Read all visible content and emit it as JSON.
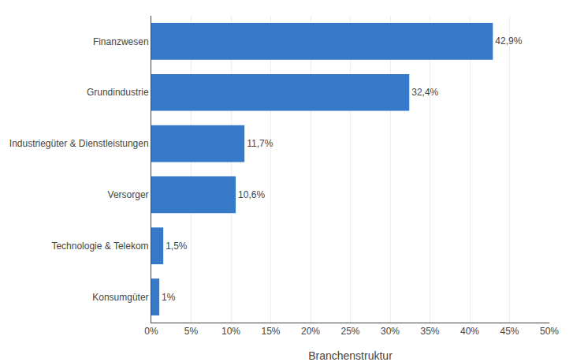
{
  "chart_data": {
    "type": "bar",
    "orientation": "horizontal",
    "xlabel": "Branchenstruktur",
    "categories": [
      "Konsumgüter",
      "Technologie & Telekom",
      "Versorger",
      "Industriegüter & Dienstleistungen",
      "Grundindustrie",
      "Finanzwesen"
    ],
    "values": [
      1.0,
      1.5,
      10.6,
      11.7,
      32.4,
      42.9
    ],
    "value_labels": [
      "1%",
      "1,5%",
      "10,6%",
      "11,7%",
      "32,4%",
      "42,9%"
    ],
    "color": "#3579c8",
    "xlim": [
      0,
      50
    ],
    "xticks": [
      {
        "value": 0,
        "label": "0%"
      },
      {
        "value": 5,
        "label": "5%"
      },
      {
        "value": 10,
        "label": "10%"
      },
      {
        "value": 15,
        "label": "15%"
      },
      {
        "value": 20,
        "label": "20%"
      },
      {
        "value": 25,
        "label": "25%"
      },
      {
        "value": 30,
        "label": "30%"
      },
      {
        "value": 35,
        "label": "35%"
      },
      {
        "value": 40,
        "label": "40%"
      },
      {
        "value": 45,
        "label": "45%"
      },
      {
        "value": 50,
        "label": "50%"
      }
    ],
    "grid": true,
    "data_labels": true
  }
}
